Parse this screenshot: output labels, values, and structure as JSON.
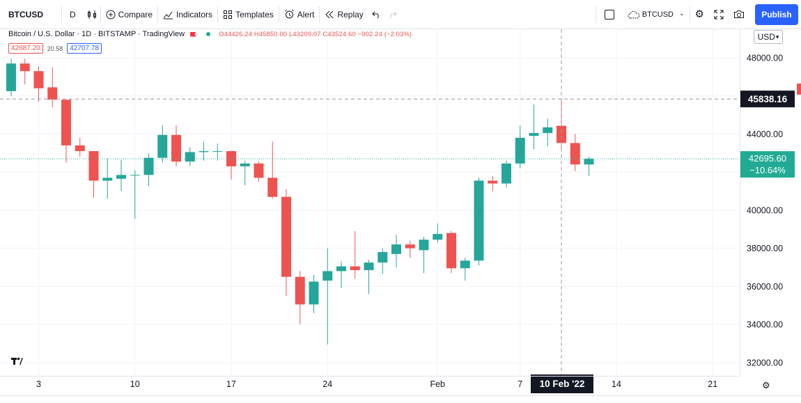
{
  "toolbar": {
    "symbol": "BTCUSD",
    "interval": "D",
    "compare": "Compare",
    "indicators": "Indicators",
    "templates": "Templates",
    "alert": "Alert",
    "replay": "Replay",
    "compare_symbol": "BTCUSD",
    "publish": "Publish"
  },
  "legend": {
    "title": "Bitcoin / U.S. Dollar · 1D · BITSTAMP · TradingView",
    "ohlc": "O44426.24 H45850.00 L43209.07 C43524.60 −902.24 (−2.03%)",
    "bid": "42687.20",
    "spread": "20.58",
    "ask": "42707.78"
  },
  "currency": "USD",
  "colors": {
    "up": "#26a69a",
    "down": "#ef5350",
    "crosshair_label_bg": "#131722",
    "last_price_bg": "#22ab94",
    "grid": "#f0f3fa"
  },
  "chart_data": {
    "type": "candlestick",
    "symbol": "BTCUSD",
    "interval": "1D",
    "ylim": [
      31300,
      49500
    ],
    "y_ticks": [
      32000,
      34000,
      36000,
      38000,
      40000,
      42000,
      44000,
      46000,
      48000
    ],
    "x_ticks": [
      {
        "label": "3",
        "index": 2
      },
      {
        "label": "10",
        "index": 9
      },
      {
        "label": "17",
        "index": 16
      },
      {
        "label": "24",
        "index": 23
      },
      {
        "label": "Feb",
        "index": 31
      },
      {
        "label": "7",
        "index": 37
      },
      {
        "label": "14",
        "index": 44
      },
      {
        "label": "21",
        "index": 51
      }
    ],
    "x_slots": 55,
    "crosshair": {
      "index": 40,
      "price": 45838.16,
      "date_label": "10 Feb '22"
    },
    "last_price": {
      "price": 42695.6,
      "change": "−10.64%"
    },
    "candles": [
      {
        "o": 46250,
        "h": 47950,
        "l": 46000,
        "c": 47700
      },
      {
        "o": 47700,
        "h": 47950,
        "l": 46600,
        "c": 47300
      },
      {
        "o": 47300,
        "h": 47550,
        "l": 45700,
        "c": 46400
      },
      {
        "o": 46450,
        "h": 47500,
        "l": 45400,
        "c": 45800
      },
      {
        "o": 45800,
        "h": 45800,
        "l": 42500,
        "c": 43400
      },
      {
        "o": 43400,
        "h": 43800,
        "l": 42800,
        "c": 43100
      },
      {
        "o": 43100,
        "h": 43100,
        "l": 40650,
        "c": 41550
      },
      {
        "o": 41550,
        "h": 42700,
        "l": 40600,
        "c": 41700
      },
      {
        "o": 41650,
        "h": 42650,
        "l": 41000,
        "c": 41850
      },
      {
        "o": 41850,
        "h": 42100,
        "l": 39550,
        "c": 41850
      },
      {
        "o": 41850,
        "h": 43000,
        "l": 41250,
        "c": 42750
      },
      {
        "o": 42750,
        "h": 44450,
        "l": 42500,
        "c": 43950
      },
      {
        "o": 43950,
        "h": 44450,
        "l": 42300,
        "c": 42550
      },
      {
        "o": 42550,
        "h": 43300,
        "l": 42300,
        "c": 43050
      },
      {
        "o": 43050,
        "h": 43600,
        "l": 42600,
        "c": 43100
      },
      {
        "o": 43100,
        "h": 43500,
        "l": 42600,
        "c": 43100
      },
      {
        "o": 43100,
        "h": 43100,
        "l": 41600,
        "c": 42300
      },
      {
        "o": 42300,
        "h": 42600,
        "l": 41300,
        "c": 42450
      },
      {
        "o": 42450,
        "h": 42550,
        "l": 41500,
        "c": 41700
      },
      {
        "o": 41700,
        "h": 43600,
        "l": 40600,
        "c": 40700
      },
      {
        "o": 40700,
        "h": 41100,
        "l": 35500,
        "c": 36500
      },
      {
        "o": 36500,
        "h": 36800,
        "l": 34000,
        "c": 35050
      },
      {
        "o": 35050,
        "h": 36600,
        "l": 34600,
        "c": 36250
      },
      {
        "o": 36300,
        "h": 38000,
        "l": 32950,
        "c": 36800
      },
      {
        "o": 36800,
        "h": 37300,
        "l": 35900,
        "c": 37050
      },
      {
        "o": 37050,
        "h": 38900,
        "l": 36400,
        "c": 36850
      },
      {
        "o": 36850,
        "h": 37400,
        "l": 35600,
        "c": 37250
      },
      {
        "o": 37250,
        "h": 38000,
        "l": 36650,
        "c": 37800
      },
      {
        "o": 37700,
        "h": 38700,
        "l": 37000,
        "c": 38200
      },
      {
        "o": 38200,
        "h": 38400,
        "l": 37500,
        "c": 38000
      },
      {
        "o": 37900,
        "h": 38600,
        "l": 36700,
        "c": 38450
      },
      {
        "o": 38450,
        "h": 39300,
        "l": 38300,
        "c": 38750
      },
      {
        "o": 38800,
        "h": 38900,
        "l": 36700,
        "c": 36950
      },
      {
        "o": 36950,
        "h": 37500,
        "l": 36300,
        "c": 37350
      },
      {
        "o": 37350,
        "h": 41700,
        "l": 37100,
        "c": 41550
      },
      {
        "o": 41550,
        "h": 41800,
        "l": 41000,
        "c": 41400
      },
      {
        "o": 41400,
        "h": 42600,
        "l": 41200,
        "c": 42450
      },
      {
        "o": 42450,
        "h": 44450,
        "l": 42200,
        "c": 43800
      },
      {
        "o": 43900,
        "h": 45550,
        "l": 43200,
        "c": 44050
      },
      {
        "o": 44050,
        "h": 44800,
        "l": 43350,
        "c": 44350
      },
      {
        "o": 44430,
        "h": 45850,
        "l": 43210,
        "c": 43525
      },
      {
        "o": 43525,
        "h": 44000,
        "l": 42050,
        "c": 42400
      },
      {
        "o": 42400,
        "h": 42800,
        "l": 41800,
        "c": 42696
      }
    ]
  }
}
